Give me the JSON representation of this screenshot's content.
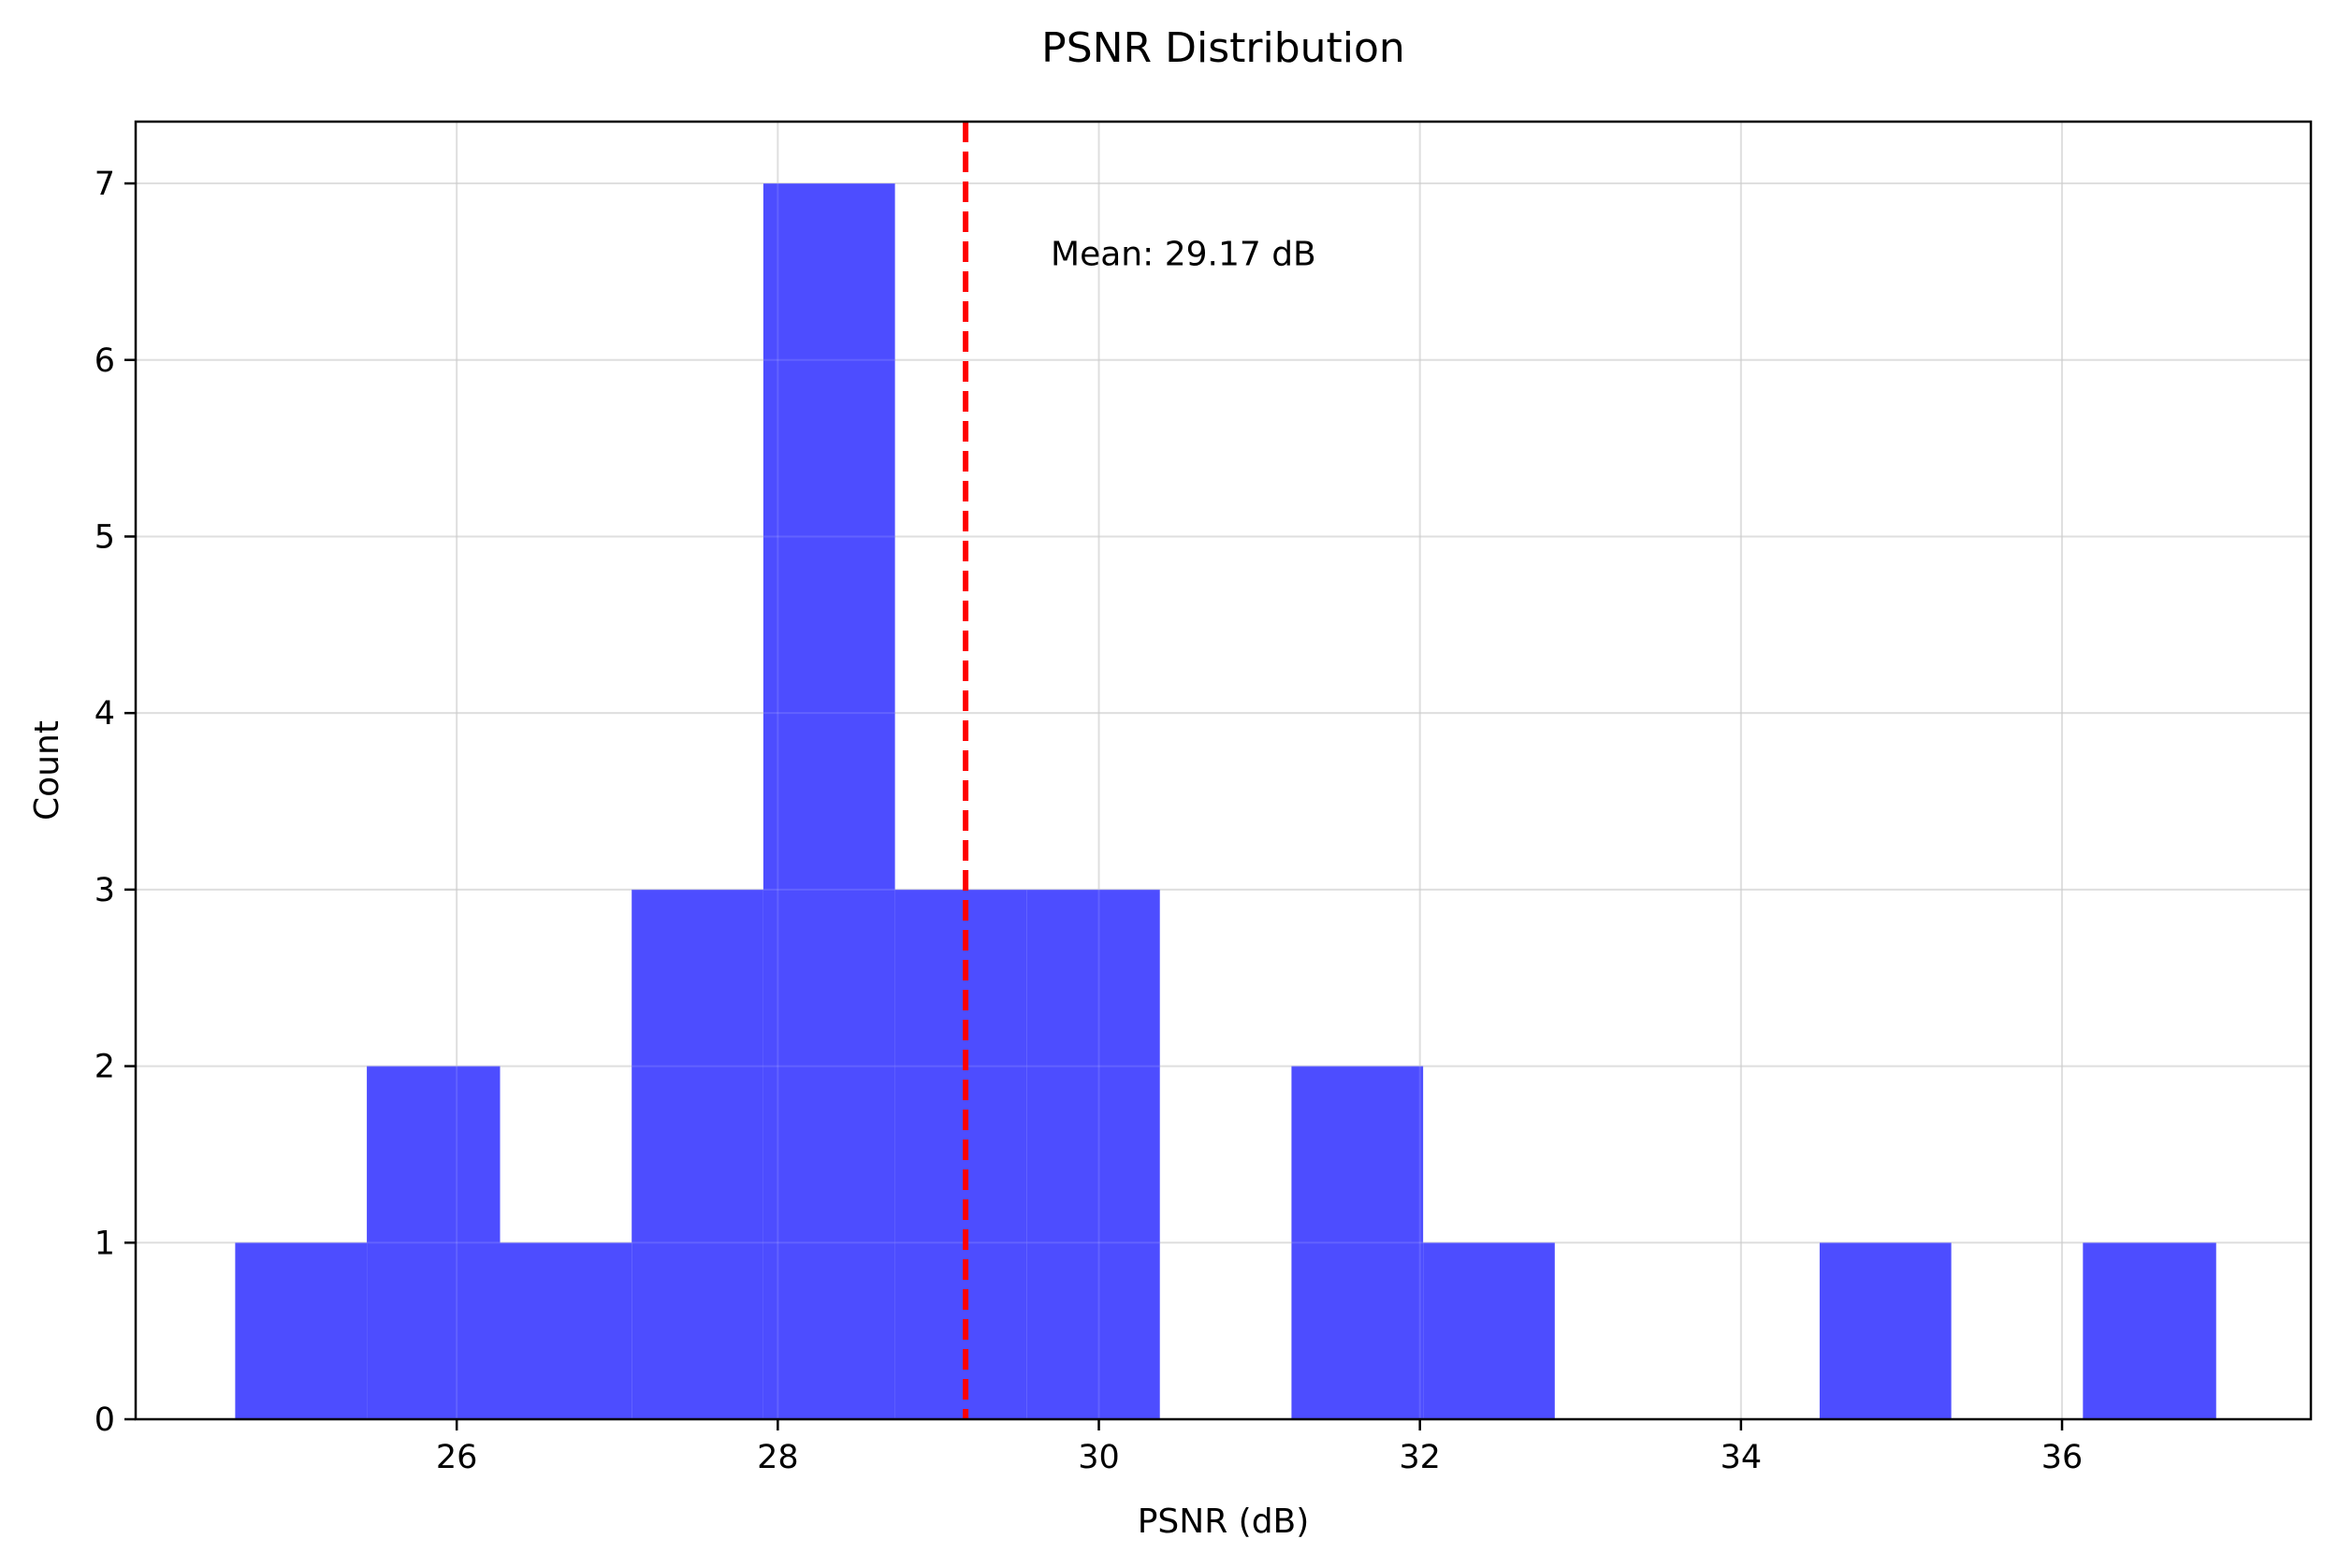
{
  "chart_data": {
    "type": "histogram",
    "title": "PSNR Distribution",
    "xlabel": "PSNR (dB)",
    "ylabel": "Count",
    "xlim": [
      24.0,
      37.55
    ],
    "ylim": [
      0,
      7.35
    ],
    "xticks": [
      26,
      28,
      30,
      32,
      34,
      36
    ],
    "yticks": [
      0,
      1,
      2,
      3,
      4,
      5,
      6,
      7
    ],
    "bin_edges": [
      24.62,
      25.44,
      26.27,
      27.09,
      27.91,
      28.73,
      29.55,
      30.38,
      31.2,
      32.02,
      32.84,
      33.67,
      34.49,
      35.31,
      36.13,
      36.96
    ],
    "counts": [
      1,
      2,
      1,
      3,
      7,
      3,
      3,
      0,
      2,
      1,
      0,
      0,
      1,
      0,
      1
    ],
    "bar_color": "#4d4dff",
    "grid": true,
    "mean_line": {
      "x": 29.17,
      "color": "#ff0000",
      "style": "dashed"
    },
    "annotation": {
      "text": "Mean: 29.17 dB",
      "x": 29.7,
      "y": 6.6
    }
  }
}
